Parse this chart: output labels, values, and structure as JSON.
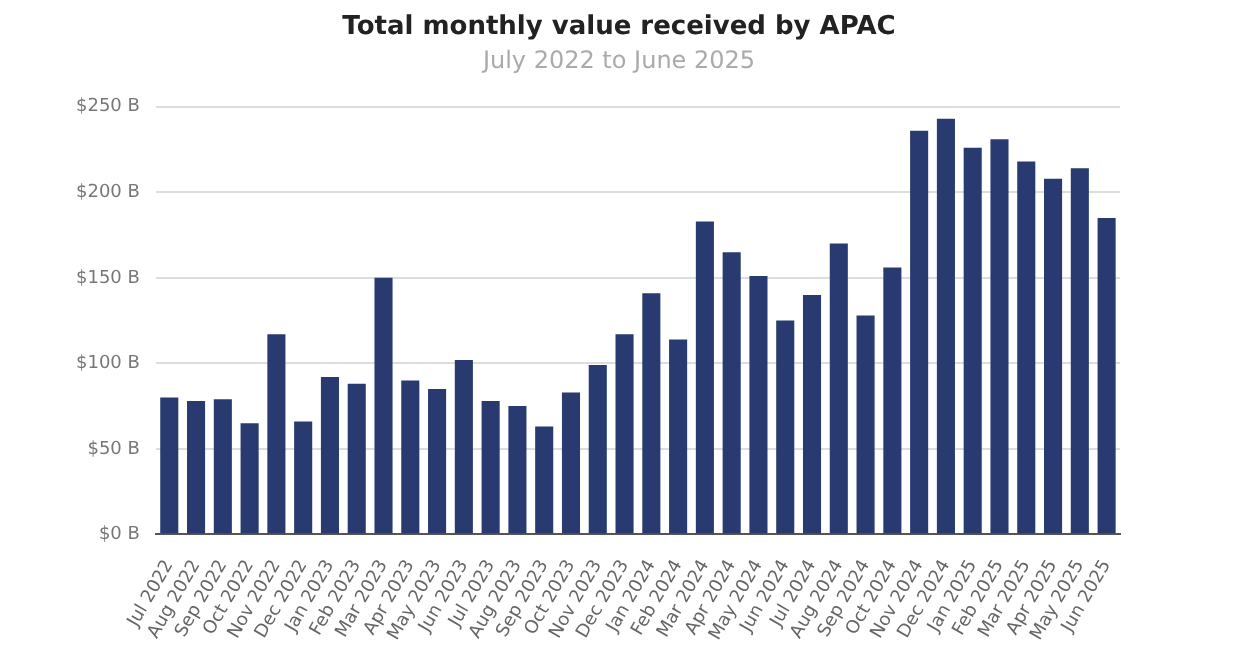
{
  "chart_data": {
    "type": "bar",
    "title": "Total monthly value received by APAC",
    "subtitle": "July 2022 to June 2025",
    "categories": [
      "Jul 2022",
      "Aug 2022",
      "Sep 2022",
      "Oct 2022",
      "Nov 2022",
      "Dec 2022",
      "Jan 2023",
      "Feb 2023",
      "Mar 2023",
      "Apr 2023",
      "May 2023",
      "Jun 2023",
      "Jul 2023",
      "Aug 2023",
      "Sep 2023",
      "Oct 2023",
      "Nov 2023",
      "Dec 2023",
      "Jan 2024",
      "Feb 2024",
      "Mar 2024",
      "Apr 2024",
      "May 2024",
      "Jun 2024",
      "Jul 2024",
      "Aug 2024",
      "Sep 2024",
      "Oct 2024",
      "Nov 2024",
      "Dec 2024",
      "Jan 2025",
      "Feb 2025",
      "Mar 2025",
      "Apr 2025",
      "May 2025",
      "Jun 2025"
    ],
    "values": [
      80,
      78,
      79,
      65,
      117,
      66,
      92,
      88,
      150,
      90,
      85,
      102,
      78,
      75,
      63,
      83,
      99,
      117,
      141,
      114,
      183,
      165,
      151,
      125,
      140,
      170,
      128,
      156,
      236,
      243,
      226,
      231,
      218,
      208,
      214,
      185
    ],
    "color": "#283a70",
    "ylim": [
      0,
      250
    ],
    "yticks": [
      {
        "value": 0,
        "label": "$0 B"
      },
      {
        "value": 50,
        "label": "$50 B"
      },
      {
        "value": 100,
        "label": "$100 B"
      },
      {
        "value": 150,
        "label": "$150 B"
      },
      {
        "value": 200,
        "label": "$200 B"
      },
      {
        "value": 250,
        "label": "$250 B"
      }
    ],
    "grid": "y",
    "legend": false
  }
}
